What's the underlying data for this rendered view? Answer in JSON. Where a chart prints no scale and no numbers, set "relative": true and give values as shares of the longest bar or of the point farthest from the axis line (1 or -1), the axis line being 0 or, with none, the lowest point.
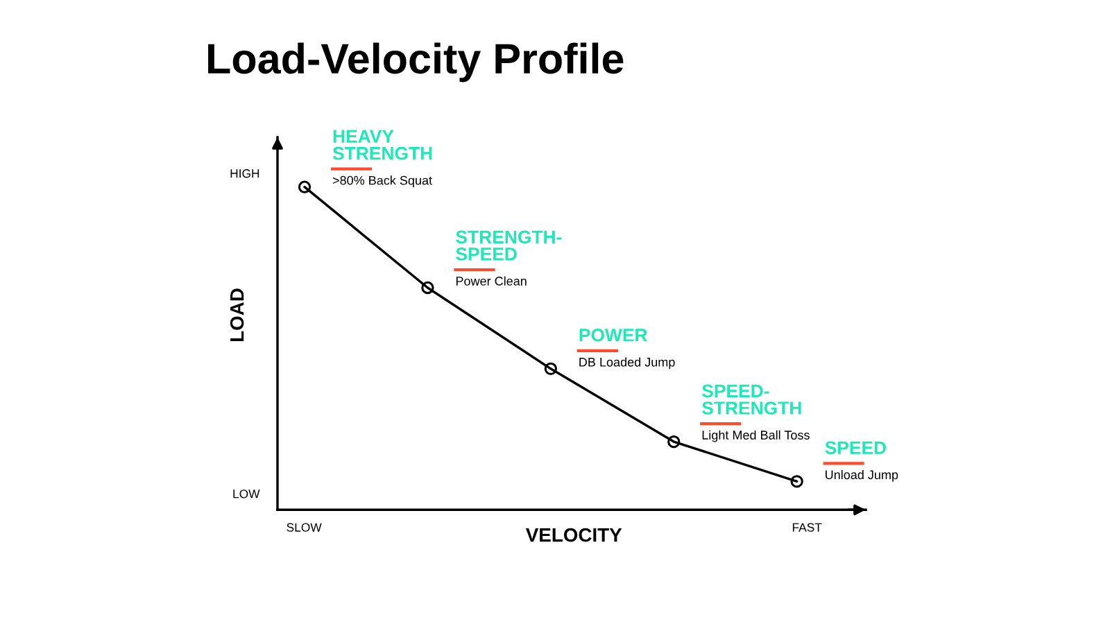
{
  "chart_data": {
    "type": "line",
    "title": "Load-Velocity Profile",
    "xlabel": "VELOCITY",
    "ylabel": "LOAD",
    "relative": true,
    "categories": [
      null,
      null,
      null,
      null,
      null
    ],
    "series": [
      {
        "color": "#000000",
        "values": [
          1,
          0.688,
          0.437,
          0.211,
          0.088
        ]
      }
    ],
    "marker": "circle",
    "line_style": "solid",
    "annotations": [
      "HIGH",
      "LOW",
      "SLOW",
      "FAST",
      "HEAVY\nSTRENGTH",
      ">80% Back Squat",
      "STRENGTH-\nSPEED",
      "Power Clean",
      "POWER",
      "DB Loaded Jump",
      "SPEED-\nSTRENGTH",
      "Light Med Ball Toss",
      "SPEED",
      "Unload Jump"
    ]
  }
}
